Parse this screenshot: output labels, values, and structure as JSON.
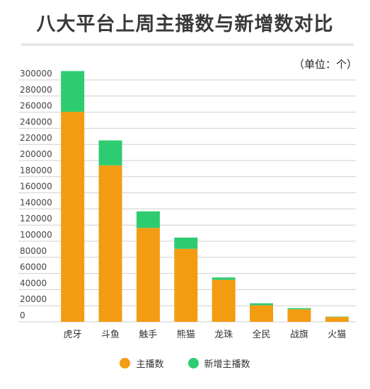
{
  "colors": {
    "primary": "#f39c12",
    "new": "#2ecc71",
    "grid": "#cfcfcf",
    "axis_text": "#444444"
  },
  "chart_data": {
    "type": "bar",
    "stacked": true,
    "title": "八大平台上周主播数与新增数对比",
    "unit_label": "（单位：个）",
    "categories": [
      "虎牙",
      "斗鱼",
      "触手",
      "熊猫",
      "龙珠",
      "全民",
      "战旗",
      "火猫"
    ],
    "series": [
      {
        "name": "主播数",
        "values": [
          260500,
          194000,
          116500,
          90500,
          52000,
          20500,
          15500,
          6000
        ]
      },
      {
        "name": "新增主播数",
        "values": [
          50500,
          31000,
          20500,
          14000,
          3000,
          2500,
          1500,
          500
        ]
      }
    ],
    "ylim": [
      0,
      300000
    ],
    "yticks": [
      0,
      20000,
      40000,
      60000,
      80000,
      100000,
      120000,
      140000,
      160000,
      180000,
      200000,
      220000,
      240000,
      260000,
      280000,
      300000
    ],
    "grid": true,
    "legend_position": "bottom-center"
  }
}
